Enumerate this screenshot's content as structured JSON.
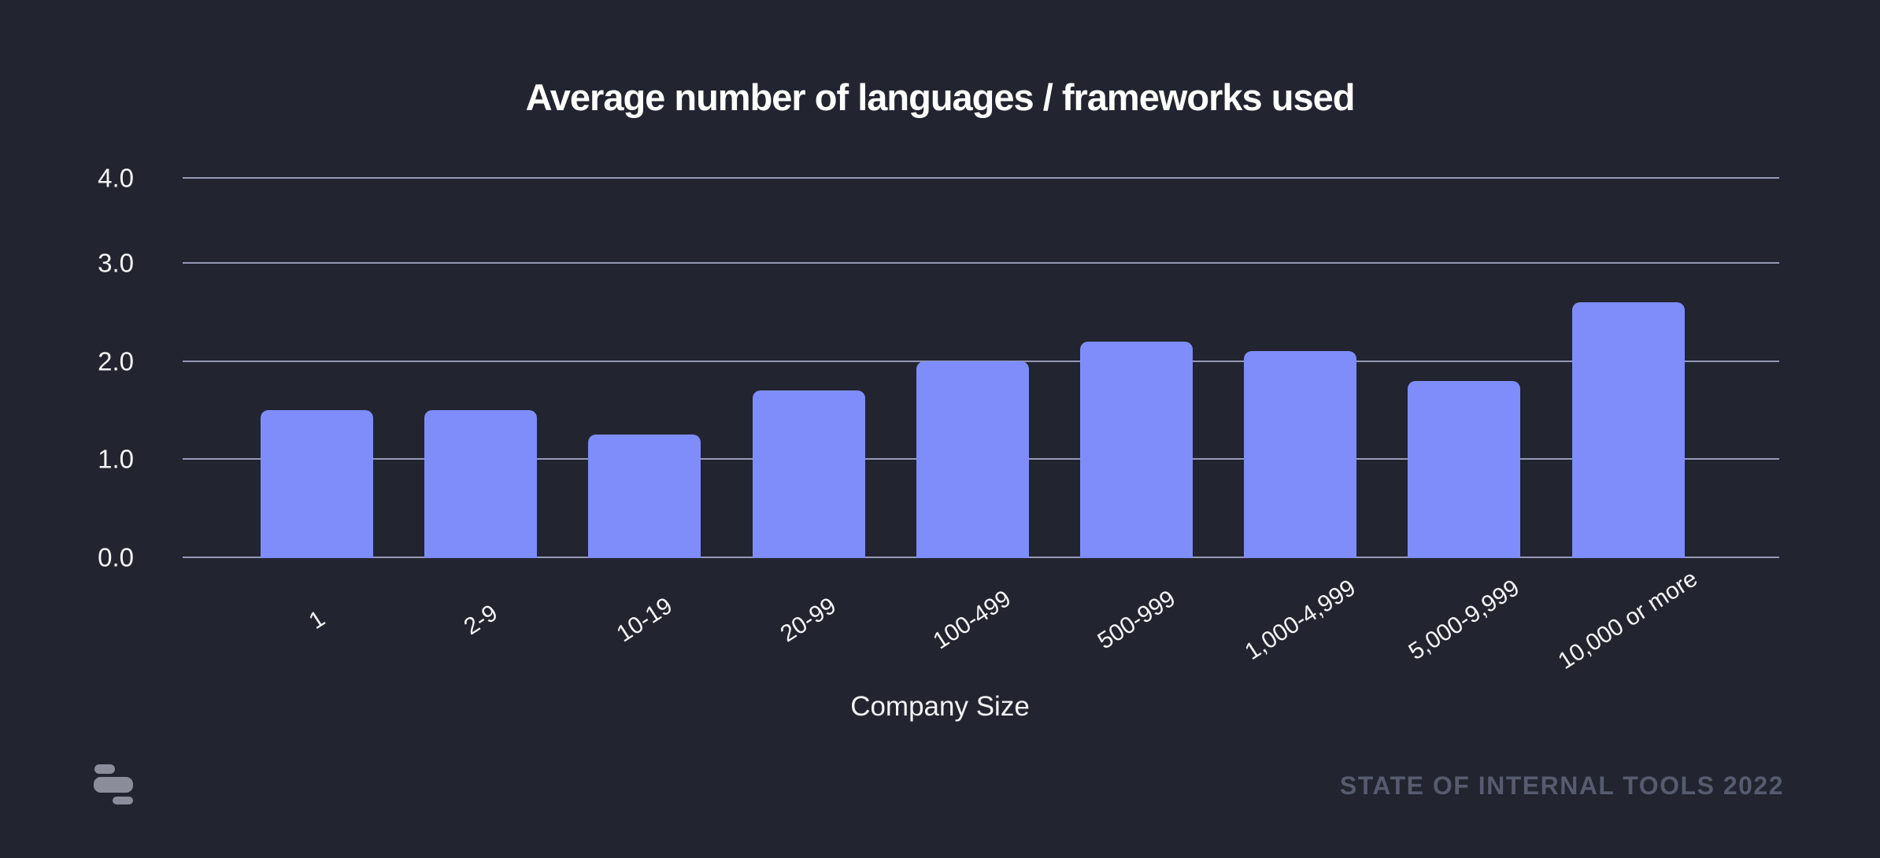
{
  "page": {
    "background_color": "#222430"
  },
  "chart_data": {
    "type": "bar",
    "title": "Average number of languages / frameworks used",
    "categories": [
      "1",
      "2-9",
      "10-19",
      "20-99",
      "100-499",
      "500-999",
      "1,000-4,999",
      "5,000-9,999",
      "10,000 or more"
    ],
    "values": [
      1.5,
      1.5,
      1.25,
      1.7,
      2.0,
      2.2,
      2.1,
      1.8,
      2.6
    ],
    "xlabel": "Company Size",
    "ylabel": "",
    "ylim": [
      0,
      4
    ],
    "ytick_labels": [
      "0.0",
      "1.0",
      "2.0",
      "3.0",
      "4.0"
    ],
    "grid": true,
    "legend": null,
    "x_label_rotation_deg": -33,
    "bar_color": "#7E8DF9",
    "gridline_color": "#9599B4",
    "text_color": "#FFFFFF"
  },
  "footer": {
    "credit": "STATE OF INTERNAL TOOLS 2022",
    "logo": "state-of-internal-tools-logo"
  }
}
